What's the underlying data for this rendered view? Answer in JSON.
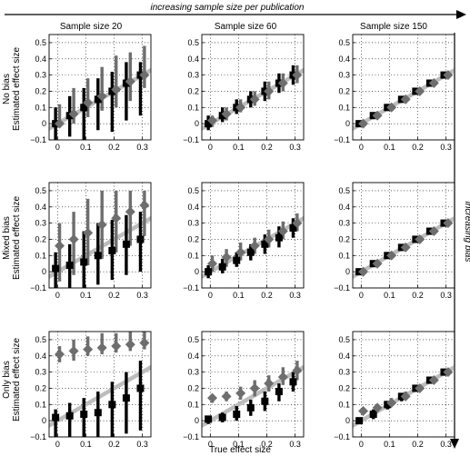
{
  "top_label": "increasing sample size per publication",
  "side_label": "increasing bias",
  "column_titles": [
    "Sample size 20",
    "Sample size 60",
    "Sample size 150"
  ],
  "row_titles": [
    "No bias",
    "Mixed bias",
    "Only bias"
  ],
  "ylabel": "Estimated effect size",
  "xlabel": "True effect size",
  "colors": {
    "black_series": "#000000",
    "gray_series": "#6e6e6e",
    "identity_line": "#bdbdbd",
    "grid": "#000000"
  },
  "chart_data": {
    "type": "scatter",
    "layout": "3x3 small multiples",
    "x_ticks": [
      0,
      0.1,
      0.2,
      0.3
    ],
    "x_tick_labels": [
      "0",
      "0.1",
      "0.2",
      "0.3"
    ],
    "y_ticks": [
      -0.1,
      0,
      0.1,
      0.2,
      0.3,
      0.4,
      0.5
    ],
    "y_tick_labels": [
      "−0.1",
      "0",
      "0.1",
      "0.2",
      "0.3",
      "0.4",
      "0.5"
    ],
    "xlim": [
      -0.03,
      0.33
    ],
    "ylim": [
      -0.1,
      0.55
    ],
    "grid": "dotted",
    "true_effects": [
      0,
      0.05,
      0.1,
      0.15,
      0.2,
      0.25,
      0.3
    ],
    "panels": [
      {
        "row": 0,
        "col": 0,
        "black": {
          "y": [
            0.0,
            0.05,
            0.1,
            0.15,
            0.2,
            0.25,
            0.3
          ],
          "lo": [
            -0.1,
            -0.08,
            -0.1,
            -0.04,
            -0.05,
            0.02,
            0.05
          ],
          "hi": [
            0.1,
            0.17,
            0.22,
            0.28,
            0.32,
            0.38,
            0.38
          ]
        },
        "gray": {
          "y": [
            0.0,
            0.06,
            0.13,
            0.17,
            0.21,
            0.26,
            0.3
          ],
          "lo": [
            -0.02,
            0.0,
            0.04,
            0.08,
            0.1,
            0.14,
            0.22
          ],
          "hi": [
            0.12,
            0.22,
            0.28,
            0.35,
            0.42,
            0.44,
            0.48
          ]
        }
      },
      {
        "row": 0,
        "col": 1,
        "black": {
          "y": [
            0.0,
            0.05,
            0.1,
            0.15,
            0.2,
            0.25,
            0.3
          ],
          "lo": [
            -0.04,
            0.01,
            0.06,
            0.1,
            0.14,
            0.19,
            0.24
          ],
          "hi": [
            0.05,
            0.1,
            0.15,
            0.2,
            0.26,
            0.31,
            0.36
          ]
        },
        "gray": {
          "y": [
            0.02,
            0.06,
            0.1,
            0.15,
            0.2,
            0.25,
            0.3
          ],
          "lo": [
            -0.02,
            0.02,
            0.07,
            0.11,
            0.15,
            0.2,
            0.25
          ],
          "hi": [
            0.05,
            0.1,
            0.15,
            0.2,
            0.26,
            0.31,
            0.36
          ]
        }
      },
      {
        "row": 0,
        "col": 2,
        "black": {
          "y": [
            0.0,
            0.05,
            0.1,
            0.15,
            0.2,
            0.25,
            0.3
          ],
          "lo": [
            -0.02,
            0.03,
            0.08,
            0.13,
            0.18,
            0.23,
            0.28
          ],
          "hi": [
            0.02,
            0.07,
            0.12,
            0.17,
            0.22,
            0.27,
            0.32
          ]
        },
        "gray": {
          "y": [
            0.0,
            0.05,
            0.1,
            0.15,
            0.2,
            0.25,
            0.3
          ],
          "lo": [
            -0.01,
            0.04,
            0.09,
            0.14,
            0.19,
            0.24,
            0.29
          ],
          "hi": [
            0.02,
            0.07,
            0.12,
            0.17,
            0.22,
            0.27,
            0.32
          ]
        }
      },
      {
        "row": 1,
        "col": 0,
        "black": {
          "y": [
            0.02,
            0.04,
            0.06,
            0.1,
            0.13,
            0.17,
            0.2
          ],
          "lo": [
            -0.1,
            -0.1,
            -0.1,
            -0.08,
            -0.05,
            -0.02,
            0.0
          ],
          "hi": [
            0.12,
            0.17,
            0.25,
            0.3,
            0.32,
            0.35,
            0.37
          ]
        },
        "gray": {
          "y": [
            0.16,
            0.2,
            0.24,
            0.29,
            0.33,
            0.37,
            0.41
          ],
          "lo": [
            -0.06,
            -0.02,
            0.04,
            0.08,
            0.12,
            0.16,
            0.22
          ],
          "hi": [
            0.3,
            0.37,
            0.45,
            0.5,
            0.5,
            0.5,
            0.5
          ]
        }
      },
      {
        "row": 1,
        "col": 1,
        "black": {
          "y": [
            0.0,
            0.03,
            0.07,
            0.12,
            0.17,
            0.21,
            0.27
          ],
          "lo": [
            -0.04,
            -0.01,
            0.03,
            0.07,
            0.11,
            0.15,
            0.21
          ],
          "hi": [
            0.04,
            0.08,
            0.12,
            0.17,
            0.23,
            0.28,
            0.33
          ]
        },
        "gray": {
          "y": [
            0.05,
            0.09,
            0.12,
            0.16,
            0.2,
            0.25,
            0.3
          ],
          "lo": [
            0.0,
            0.03,
            0.07,
            0.11,
            0.15,
            0.2,
            0.25
          ],
          "hi": [
            0.1,
            0.14,
            0.18,
            0.21,
            0.26,
            0.31,
            0.36
          ]
        }
      },
      {
        "row": 1,
        "col": 2,
        "black": {
          "y": [
            0.0,
            0.05,
            0.1,
            0.15,
            0.2,
            0.25,
            0.3
          ],
          "lo": [
            -0.02,
            0.03,
            0.08,
            0.13,
            0.18,
            0.23,
            0.28
          ],
          "hi": [
            0.02,
            0.07,
            0.12,
            0.17,
            0.22,
            0.27,
            0.32
          ]
        },
        "gray": {
          "y": [
            0.0,
            0.05,
            0.1,
            0.15,
            0.2,
            0.25,
            0.3
          ],
          "lo": [
            -0.01,
            0.04,
            0.09,
            0.14,
            0.19,
            0.24,
            0.29
          ],
          "hi": [
            0.02,
            0.07,
            0.12,
            0.17,
            0.22,
            0.27,
            0.32
          ]
        }
      },
      {
        "row": 2,
        "col": 0,
        "black": {
          "y": [
            0.02,
            0.03,
            0.04,
            0.05,
            0.1,
            0.14,
            0.2
          ],
          "lo": [
            -0.1,
            -0.1,
            -0.1,
            -0.1,
            -0.1,
            -0.08,
            -0.06
          ],
          "hi": [
            0.07,
            0.11,
            0.14,
            0.18,
            0.24,
            0.3,
            0.37
          ]
        },
        "gray": {
          "y": [
            0.41,
            0.43,
            0.44,
            0.45,
            0.46,
            0.47,
            0.48
          ],
          "lo": [
            0.36,
            0.37,
            0.4,
            0.41,
            0.42,
            0.43,
            0.44
          ],
          "hi": [
            0.46,
            0.5,
            0.52,
            0.54,
            0.54,
            0.55,
            0.55
          ]
        }
      },
      {
        "row": 2,
        "col": 1,
        "black": {
          "y": [
            0.01,
            0.02,
            0.04,
            0.08,
            0.12,
            0.18,
            0.24
          ],
          "lo": [
            -0.02,
            -0.01,
            0.0,
            0.03,
            0.06,
            0.12,
            0.18
          ],
          "hi": [
            0.03,
            0.05,
            0.09,
            0.13,
            0.18,
            0.23,
            0.3
          ]
        },
        "gray": {
          "y": [
            0.14,
            0.15,
            0.17,
            0.2,
            0.23,
            0.27,
            0.31
          ],
          "lo": [
            0.11,
            0.12,
            0.13,
            0.15,
            0.18,
            0.22,
            0.25
          ],
          "hi": [
            0.16,
            0.18,
            0.21,
            0.25,
            0.28,
            0.33,
            0.37
          ]
        }
      },
      {
        "row": 2,
        "col": 2,
        "black": {
          "y": [
            0.0,
            0.04,
            0.1,
            0.15,
            0.2,
            0.25,
            0.3
          ],
          "lo": [
            -0.01,
            0.01,
            0.07,
            0.12,
            0.18,
            0.23,
            0.28
          ],
          "hi": [
            0.01,
            0.07,
            0.12,
            0.17,
            0.22,
            0.27,
            0.32
          ]
        },
        "gray": {
          "y": [
            0.06,
            0.08,
            0.11,
            0.15,
            0.2,
            0.25,
            0.3
          ],
          "lo": [
            0.04,
            0.06,
            0.09,
            0.13,
            0.18,
            0.23,
            0.28
          ],
          "hi": [
            0.08,
            0.1,
            0.14,
            0.18,
            0.22,
            0.27,
            0.32
          ]
        }
      }
    ]
  }
}
